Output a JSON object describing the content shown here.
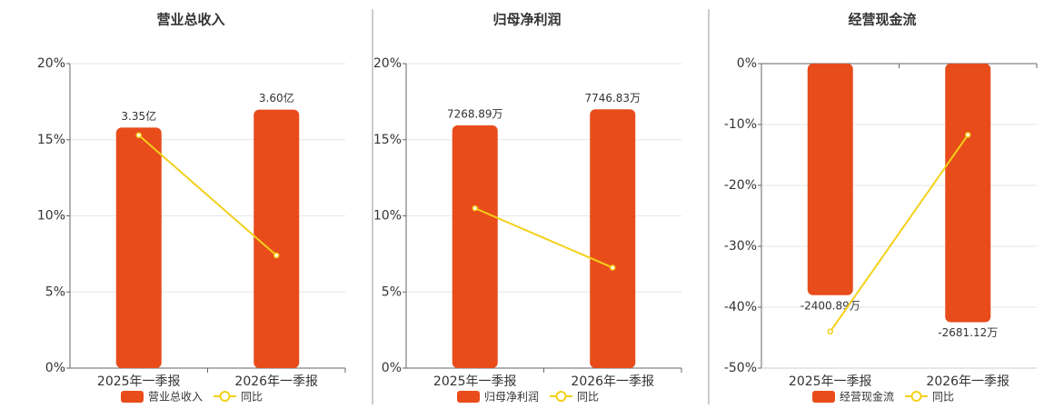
{
  "chart_data": [
    {
      "type": "bar",
      "title": "营业总收入",
      "categories": [
        "2025年一季报",
        "2026年一季报"
      ],
      "series": [
        {
          "name": "营业总收入",
          "type": "bar",
          "axis": "y2",
          "color": "#e84c1a",
          "values": [
            3.35,
            3.6
          ],
          "value_labels": [
            "3.35亿",
            "3.60亿"
          ]
        },
        {
          "name": "同比",
          "type": "line",
          "color": "#f2d01a",
          "values": [
            15.3,
            7.4
          ]
        }
      ],
      "ylim": [
        0,
        20
      ],
      "yticks": [
        {
          "value": 0,
          "label": "0%"
        },
        {
          "value": 5,
          "label": "5%"
        },
        {
          "value": 10,
          "label": "10%"
        },
        {
          "value": 15,
          "label": "15%"
        },
        {
          "value": 20,
          "label": "20%"
        }
      ],
      "y2lim": [
        0,
        4.24
      ],
      "grid": true
    },
    {
      "type": "bar",
      "title": "归母净利润",
      "categories": [
        "2025年一季报",
        "2026年一季报"
      ],
      "series": [
        {
          "name": "归母净利润",
          "type": "bar",
          "axis": "y2",
          "color": "#e84c1a",
          "values": [
            7268.89,
            7746.83
          ],
          "value_labels": [
            "7268.89万",
            "7746.83万"
          ]
        },
        {
          "name": "同比",
          "type": "line",
          "color": "#f2d01a",
          "values": [
            10.5,
            6.6
          ]
        }
      ],
      "ylim": [
        0,
        20
      ],
      "yticks": [
        {
          "value": 0,
          "label": "0%"
        },
        {
          "value": 5,
          "label": "5%"
        },
        {
          "value": 10,
          "label": "10%"
        },
        {
          "value": 15,
          "label": "15%"
        },
        {
          "value": 20,
          "label": "20%"
        }
      ],
      "y2lim": [
        0,
        9114
      ],
      "grid": true
    },
    {
      "type": "bar",
      "title": "经营现金流",
      "categories": [
        "2025年一季报",
        "2026年一季报"
      ],
      "series": [
        {
          "name": "经营现金流",
          "type": "bar",
          "axis": "y2",
          "color": "#e84c1a",
          "values": [
            -2400.89,
            -2681.12
          ],
          "value_labels": [
            "-2400.89万",
            "-2681.12万"
          ]
        },
        {
          "name": "同比",
          "type": "line",
          "color": "#f2d01a",
          "values": [
            -44,
            -11.7
          ]
        }
      ],
      "ylim": [
        -50,
        0
      ],
      "yticks": [
        {
          "value": -50,
          "label": "-50%"
        },
        {
          "value": -40,
          "label": "-40%"
        },
        {
          "value": -30,
          "label": "-30%"
        },
        {
          "value": -20,
          "label": "-20%"
        },
        {
          "value": -10,
          "label": "-10%"
        },
        {
          "value": 0,
          "label": "0%"
        }
      ],
      "y2lim": [
        -3157,
        0
      ],
      "grid": true
    }
  ]
}
